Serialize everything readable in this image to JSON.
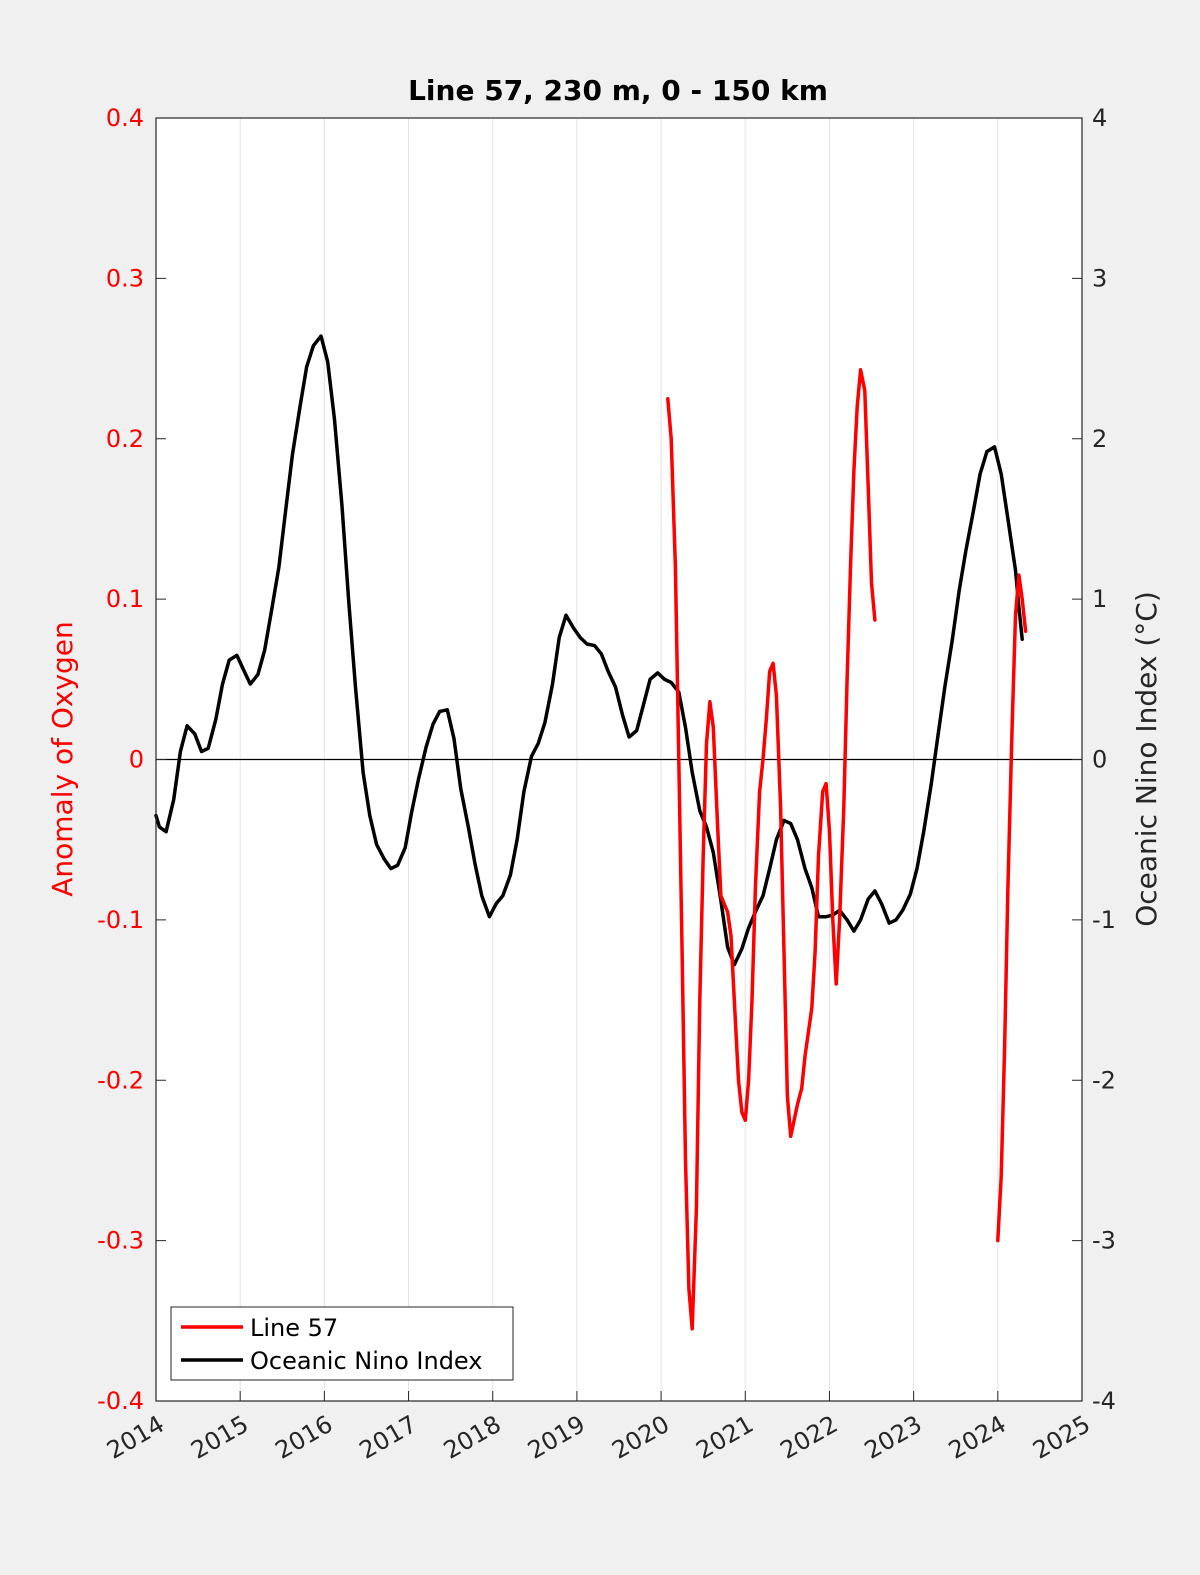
{
  "chart_data": {
    "type": "line",
    "title": "Line 57, 230 m, 0 - 150 km",
    "xlabel": "",
    "ylabel_left": "Anomaly of Oxygen",
    "ylabel_right": "Oceanic Nino Index (°C)",
    "xlim": [
      2014,
      2025
    ],
    "ylim_left": [
      -0.4,
      0.4
    ],
    "ylim_right": [
      -4,
      4
    ],
    "x_ticks": [
      "2014",
      "2015",
      "2016",
      "2017",
      "2018",
      "2019",
      "2020",
      "2021",
      "2022",
      "2023",
      "2024",
      "2025"
    ],
    "y_ticks_left": [
      "-0.4",
      "-0.3",
      "-0.2",
      "-0.1",
      "0",
      "0.1",
      "0.2",
      "0.3",
      "0.4"
    ],
    "y_ticks_right": [
      "-4",
      "-3",
      "-2",
      "-1",
      "0",
      "1",
      "2",
      "3",
      "4"
    ],
    "x_grid": true,
    "zero_line": true,
    "legend_position": "bottom-left",
    "series": [
      {
        "name": "Line 57",
        "axis": "left",
        "color": "#ff0000",
        "segments": [
          [
            [
              2020.08,
              0.225
            ],
            [
              2020.12,
              0.2
            ],
            [
              2020.17,
              0.12
            ],
            [
              2020.21,
              0.0
            ],
            [
              2020.25,
              -0.12
            ],
            [
              2020.29,
              -0.25
            ],
            [
              2020.33,
              -0.33
            ],
            [
              2020.37,
              -0.355
            ],
            [
              2020.42,
              -0.28
            ],
            [
              2020.46,
              -0.15
            ],
            [
              2020.5,
              -0.06
            ],
            [
              2020.54,
              0.01
            ],
            [
              2020.58,
              0.036
            ],
            [
              2020.62,
              0.02
            ],
            [
              2020.67,
              -0.04
            ],
            [
              2020.71,
              -0.085
            ],
            [
              2020.75,
              -0.09
            ],
            [
              2020.79,
              -0.095
            ],
            [
              2020.83,
              -0.11
            ],
            [
              2020.87,
              -0.15
            ],
            [
              2020.92,
              -0.2
            ],
            [
              2020.96,
              -0.22
            ],
            [
              2021.0,
              -0.225
            ],
            [
              2021.04,
              -0.2
            ],
            [
              2021.08,
              -0.15
            ],
            [
              2021.12,
              -0.08
            ],
            [
              2021.17,
              -0.02
            ],
            [
              2021.21,
              0.0
            ],
            [
              2021.25,
              0.025
            ],
            [
              2021.29,
              0.055
            ],
            [
              2021.33,
              0.06
            ],
            [
              2021.37,
              0.04
            ],
            [
              2021.42,
              -0.03
            ],
            [
              2021.46,
              -0.12
            ],
            [
              2021.5,
              -0.21
            ],
            [
              2021.54,
              -0.235
            ],
            [
              2021.58,
              -0.225
            ],
            [
              2021.62,
              -0.215
            ],
            [
              2021.67,
              -0.205
            ],
            [
              2021.71,
              -0.185
            ],
            [
              2021.75,
              -0.17
            ],
            [
              2021.79,
              -0.155
            ],
            [
              2021.83,
              -0.12
            ],
            [
              2021.87,
              -0.06
            ],
            [
              2021.92,
              -0.02
            ],
            [
              2021.96,
              -0.015
            ],
            [
              2022.0,
              -0.045
            ],
            [
              2022.04,
              -0.1
            ],
            [
              2022.08,
              -0.14
            ],
            [
              2022.12,
              -0.1
            ],
            [
              2022.17,
              -0.03
            ],
            [
              2022.21,
              0.05
            ],
            [
              2022.25,
              0.12
            ],
            [
              2022.29,
              0.18
            ],
            [
              2022.33,
              0.22
            ],
            [
              2022.37,
              0.243
            ],
            [
              2022.42,
              0.23
            ],
            [
              2022.46,
              0.17
            ],
            [
              2022.5,
              0.11
            ],
            [
              2022.54,
              0.087
            ]
          ],
          [
            [
              2024.0,
              -0.3
            ],
            [
              2024.04,
              -0.26
            ],
            [
              2024.08,
              -0.18
            ],
            [
              2024.12,
              -0.08
            ],
            [
              2024.17,
              0.02
            ],
            [
              2024.21,
              0.09
            ],
            [
              2024.25,
              0.115
            ],
            [
              2024.29,
              0.1
            ],
            [
              2024.33,
              0.08
            ]
          ]
        ]
      },
      {
        "name": "Oceanic Nino Index",
        "axis": "right",
        "color": "#000000",
        "segments": [
          [
            [
              2014.0,
              -0.35
            ],
            [
              2014.04,
              -0.42
            ],
            [
              2014.12,
              -0.45
            ],
            [
              2014.21,
              -0.25
            ],
            [
              2014.29,
              0.05
            ],
            [
              2014.37,
              0.21
            ],
            [
              2014.46,
              0.16
            ],
            [
              2014.54,
              0.05
            ],
            [
              2014.62,
              0.07
            ],
            [
              2014.71,
              0.25
            ],
            [
              2014.79,
              0.47
            ],
            [
              2014.87,
              0.62
            ],
            [
              2014.96,
              0.65
            ],
            [
              2015.04,
              0.56
            ],
            [
              2015.12,
              0.47
            ],
            [
              2015.21,
              0.53
            ],
            [
              2015.29,
              0.68
            ],
            [
              2015.37,
              0.92
            ],
            [
              2015.46,
              1.2
            ],
            [
              2015.54,
              1.55
            ],
            [
              2015.62,
              1.9
            ],
            [
              2015.71,
              2.2
            ],
            [
              2015.79,
              2.45
            ],
            [
              2015.87,
              2.58
            ],
            [
              2015.96,
              2.64
            ],
            [
              2016.04,
              2.48
            ],
            [
              2016.12,
              2.12
            ],
            [
              2016.21,
              1.58
            ],
            [
              2016.29,
              0.98
            ],
            [
              2016.37,
              0.45
            ],
            [
              2016.46,
              -0.08
            ],
            [
              2016.54,
              -0.35
            ],
            [
              2016.62,
              -0.53
            ],
            [
              2016.71,
              -0.62
            ],
            [
              2016.79,
              -0.68
            ],
            [
              2016.87,
              -0.66
            ],
            [
              2016.96,
              -0.55
            ],
            [
              2017.04,
              -0.32
            ],
            [
              2017.12,
              -0.12
            ],
            [
              2017.21,
              0.08
            ],
            [
              2017.29,
              0.22
            ],
            [
              2017.37,
              0.3
            ],
            [
              2017.46,
              0.31
            ],
            [
              2017.54,
              0.13
            ],
            [
              2017.62,
              -0.18
            ],
            [
              2017.71,
              -0.42
            ],
            [
              2017.79,
              -0.65
            ],
            [
              2017.87,
              -0.85
            ],
            [
              2017.96,
              -0.98
            ],
            [
              2018.04,
              -0.9
            ],
            [
              2018.12,
              -0.85
            ],
            [
              2018.21,
              -0.72
            ],
            [
              2018.29,
              -0.5
            ],
            [
              2018.37,
              -0.2
            ],
            [
              2018.46,
              0.02
            ],
            [
              2018.54,
              0.1
            ],
            [
              2018.62,
              0.23
            ],
            [
              2018.71,
              0.47
            ],
            [
              2018.79,
              0.76
            ],
            [
              2018.87,
              0.9
            ],
            [
              2018.96,
              0.82
            ],
            [
              2019.04,
              0.76
            ],
            [
              2019.12,
              0.72
            ],
            [
              2019.21,
              0.71
            ],
            [
              2019.29,
              0.66
            ],
            [
              2019.37,
              0.55
            ],
            [
              2019.46,
              0.45
            ],
            [
              2019.54,
              0.28
            ],
            [
              2019.62,
              0.14
            ],
            [
              2019.71,
              0.18
            ],
            [
              2019.79,
              0.34
            ],
            [
              2019.87,
              0.5
            ],
            [
              2019.96,
              0.54
            ],
            [
              2020.04,
              0.5
            ],
            [
              2020.12,
              0.48
            ],
            [
              2020.21,
              0.42
            ],
            [
              2020.29,
              0.2
            ],
            [
              2020.37,
              -0.08
            ],
            [
              2020.46,
              -0.32
            ],
            [
              2020.54,
              -0.42
            ],
            [
              2020.62,
              -0.58
            ],
            [
              2020.71,
              -0.88
            ],
            [
              2020.79,
              -1.17
            ],
            [
              2020.87,
              -1.28
            ],
            [
              2020.96,
              -1.18
            ],
            [
              2021.04,
              -1.05
            ],
            [
              2021.12,
              -0.95
            ],
            [
              2021.21,
              -0.85
            ],
            [
              2021.29,
              -0.68
            ],
            [
              2021.37,
              -0.5
            ],
            [
              2021.46,
              -0.38
            ],
            [
              2021.54,
              -0.4
            ],
            [
              2021.62,
              -0.5
            ],
            [
              2021.71,
              -0.68
            ],
            [
              2021.79,
              -0.8
            ],
            [
              2021.87,
              -0.98
            ],
            [
              2021.96,
              -0.98
            ],
            [
              2022.04,
              -0.97
            ],
            [
              2022.12,
              -0.94
            ],
            [
              2022.21,
              -1.0
            ],
            [
              2022.29,
              -1.07
            ],
            [
              2022.37,
              -1.0
            ],
            [
              2022.46,
              -0.87
            ],
            [
              2022.54,
              -0.82
            ],
            [
              2022.62,
              -0.9
            ],
            [
              2022.71,
              -1.02
            ],
            [
              2022.79,
              -1.0
            ],
            [
              2022.87,
              -0.94
            ],
            [
              2022.96,
              -0.84
            ],
            [
              2023.04,
              -0.68
            ],
            [
              2023.12,
              -0.45
            ],
            [
              2023.21,
              -0.15
            ],
            [
              2023.29,
              0.15
            ],
            [
              2023.37,
              0.45
            ],
            [
              2023.46,
              0.75
            ],
            [
              2023.54,
              1.05
            ],
            [
              2023.62,
              1.3
            ],
            [
              2023.71,
              1.55
            ],
            [
              2023.79,
              1.78
            ],
            [
              2023.87,
              1.92
            ],
            [
              2023.96,
              1.95
            ],
            [
              2024.04,
              1.78
            ],
            [
              2024.12,
              1.5
            ],
            [
              2024.21,
              1.18
            ],
            [
              2024.25,
              0.95
            ],
            [
              2024.29,
              0.75
            ]
          ]
        ]
      }
    ]
  }
}
